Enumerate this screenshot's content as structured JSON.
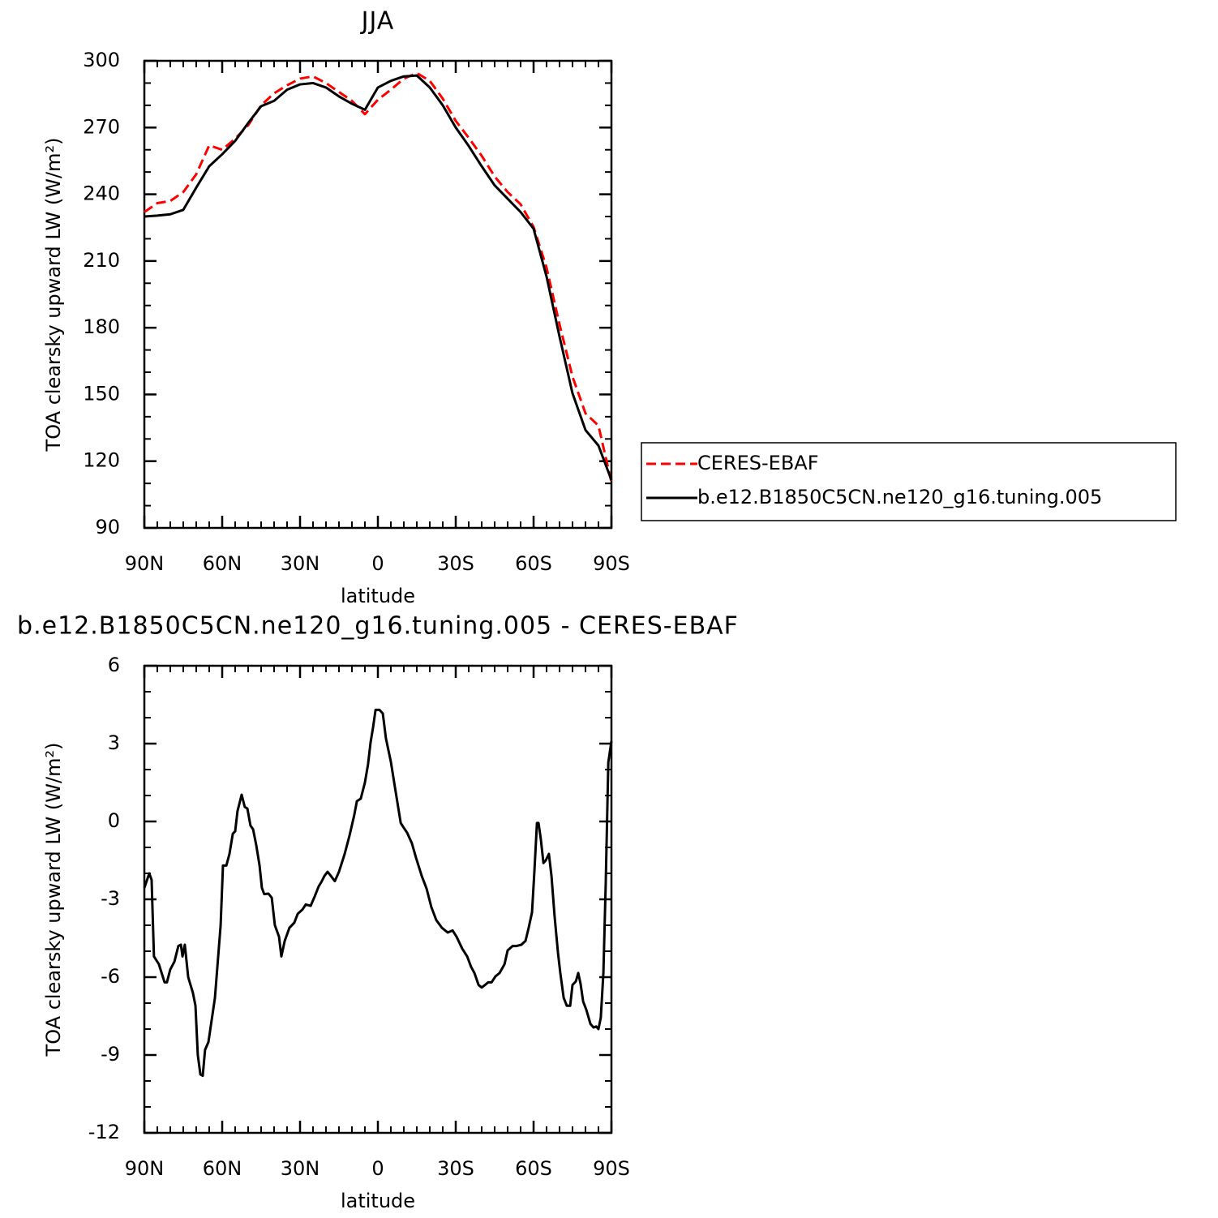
{
  "chart_data": [
    {
      "type": "line",
      "title": "JJA",
      "x_label": "latitude",
      "y_label": "TOA clearsky upward LW (W/m²)",
      "x": [
        90,
        85,
        80,
        75,
        70,
        65,
        60,
        55,
        50,
        45,
        40,
        35,
        30,
        25,
        20,
        15,
        10,
        5,
        0,
        -5,
        -10,
        -15,
        -20,
        -25,
        -30,
        -35,
        -40,
        -45,
        -50,
        -55,
        -60,
        -65,
        -70,
        -75,
        -80,
        -85,
        -90
      ],
      "series": [
        {
          "name": "CERES-EBAF",
          "color": "#ff0000",
          "dashed": true,
          "values": [
            232,
            236,
            237,
            241,
            249,
            262,
            260,
            265,
            271,
            280,
            285.4,
            289,
            292,
            293,
            290,
            286,
            282,
            276,
            282.5,
            287,
            292,
            294.5,
            291,
            283,
            273,
            265.4,
            257.3,
            248,
            241,
            235.5,
            225.3,
            207,
            181.5,
            158,
            141.5,
            136,
            110.5
          ]
        },
        {
          "name": "b.e12.B1850C5CN.ne120_g16.tuning.005",
          "color": "#000000",
          "dashed": false,
          "values": [
            230,
            230.4,
            231,
            233,
            243,
            252.6,
            258,
            264,
            272,
            279.6,
            282,
            287,
            289.4,
            290,
            288,
            284,
            280.7,
            278,
            288,
            291,
            293,
            293.4,
            288,
            280,
            270,
            261.7,
            252.6,
            244,
            238,
            232,
            224.5,
            203,
            176,
            150.5,
            134,
            127,
            111.5
          ]
        }
      ],
      "xlim": [
        90,
        -90
      ],
      "xticks": [
        {
          "value": 90,
          "label": "90N"
        },
        {
          "value": 60,
          "label": "60N"
        },
        {
          "value": 30,
          "label": "30N"
        },
        0,
        {
          "value": -30,
          "label": "30S"
        },
        {
          "value": -60,
          "label": "60S"
        },
        {
          "value": -90,
          "label": "90S"
        }
      ],
      "ylim": [
        90,
        300
      ],
      "yticks": [
        90,
        120,
        150,
        180,
        210,
        240,
        270,
        300
      ],
      "legend": "outside-right"
    },
    {
      "type": "line",
      "title": "b.e12.B1850C5CN.ne120_g16.tuning.005 - CERES-EBAF",
      "x_label": "latitude",
      "y_label": "TOA clearsky upward LW (W/m²)",
      "x": [
        90,
        88.1,
        87.2,
        86.3,
        84.4,
        82.2,
        81.3,
        80,
        78.4,
        76.9,
        75.9,
        75.3,
        74.4,
        73.1,
        71.3,
        70.3,
        69.4,
        68.4,
        67.5,
        66.6,
        65.3,
        62.8,
        60.6,
        59.7,
        58.4,
        57.2,
        55.9,
        55,
        54.1,
        52.5,
        51.3,
        50.3,
        49.1,
        48.1,
        46.9,
        45.6,
        44.7,
        43.8,
        42.2,
        40.9,
        39.7,
        38.1,
        37.2,
        35.9,
        34.1,
        32.2,
        30.9,
        29.1,
        27.8,
        25.9,
        24.4,
        22.8,
        21.6,
        20.6,
        19.4,
        18.1,
        16.6,
        15,
        12.8,
        10.9,
        9.1,
        8.1,
        6.6,
        5,
        3.8,
        2.8,
        1.9,
        0.9,
        -0.6,
        -1.9,
        -3.1,
        -5,
        -6.6,
        -8.8,
        -9.7,
        -11.3,
        -13.1,
        -14.7,
        -16.9,
        -18.8,
        -20.6,
        -22.5,
        -24.7,
        -26.9,
        -28.8,
        -30.3,
        -32.5,
        -34.4,
        -35.9,
        -37.2,
        -38.8,
        -40,
        -41.3,
        -42.5,
        -43.8,
        -45.3,
        -46.9,
        -48.8,
        -50,
        -51.9,
        -53.4,
        -55.3,
        -56.9,
        -58.1,
        -59.4,
        -60.3,
        -61.3,
        -61.9,
        -62.8,
        -63.8,
        -64.7,
        -65.9,
        -66.9,
        -68.1,
        -69.4,
        -70.3,
        -71.6,
        -72.8,
        -74.1,
        -75,
        -76.3,
        -77.2,
        -78.1,
        -79.1,
        -80.3,
        -81.9,
        -83.1,
        -84.1,
        -85,
        -85.9,
        -86.9,
        -87.8,
        -88.8,
        -90
      ],
      "series": [
        {
          "color": "#000000",
          "dashed": false,
          "values": [
            -2.56,
            -2,
            -2.25,
            -5.2,
            -5.5,
            -6.2,
            -6.2,
            -5.7,
            -5.4,
            -4.8,
            -4.75,
            -5.2,
            -4.75,
            -6,
            -6.6,
            -7.1,
            -9,
            -9.75,
            -9.8,
            -8.8,
            -8.5,
            -6.8,
            -4,
            -1.7,
            -1.7,
            -1.25,
            -0.47,
            -0.38,
            0.4,
            1.03,
            0.56,
            0.5,
            -0.16,
            -0.3,
            -0.9,
            -1.7,
            -2.56,
            -2.8,
            -2.78,
            -2.94,
            -4,
            -4.44,
            -5.2,
            -4.6,
            -4.1,
            -3.9,
            -3.56,
            -3.4,
            -3.2,
            -3.25,
            -2.9,
            -2.5,
            -2.3,
            -2.1,
            -1.94,
            -2.1,
            -2.3,
            -1.94,
            -1.25,
            -0.53,
            0.25,
            0.78,
            0.88,
            1.5,
            2.2,
            3.06,
            3.6,
            4.3,
            4.3,
            4.16,
            3.2,
            2.3,
            1.3,
            -0.06,
            -0.2,
            -0.44,
            -0.84,
            -1.4,
            -2.1,
            -2.6,
            -3.3,
            -3.8,
            -4.1,
            -4.28,
            -4.2,
            -4.44,
            -4.9,
            -5.2,
            -5.6,
            -5.84,
            -6.3,
            -6.4,
            -6.3,
            -6.2,
            -6.2,
            -5.97,
            -5.84,
            -5.5,
            -4.97,
            -4.8,
            -4.8,
            -4.75,
            -4.6,
            -4.1,
            -3.5,
            -1.94,
            -0.06,
            -0.06,
            -0.69,
            -1.6,
            -1.5,
            -1.25,
            -2.1,
            -3.66,
            -5.06,
            -5.84,
            -6.8,
            -7.1,
            -7.1,
            -6.3,
            -6.16,
            -5.84,
            -6.25,
            -6.94,
            -7.25,
            -7.8,
            -7.94,
            -7.9,
            -8,
            -7.56,
            -5.84,
            -2.4,
            2.28,
            3.1
          ]
        }
      ],
      "xlim": [
        90,
        -90
      ],
      "xticks": [
        {
          "value": 90,
          "label": "90N"
        },
        {
          "value": 60,
          "label": "60N"
        },
        {
          "value": 30,
          "label": "30N"
        },
        0,
        {
          "value": -30,
          "label": "30S"
        },
        {
          "value": -60,
          "label": "60S"
        },
        {
          "value": -90,
          "label": "90S"
        }
      ],
      "ylim": [
        -12,
        6
      ],
      "yticks": [
        -12,
        -9,
        -6,
        -3,
        0,
        3,
        6
      ]
    }
  ]
}
